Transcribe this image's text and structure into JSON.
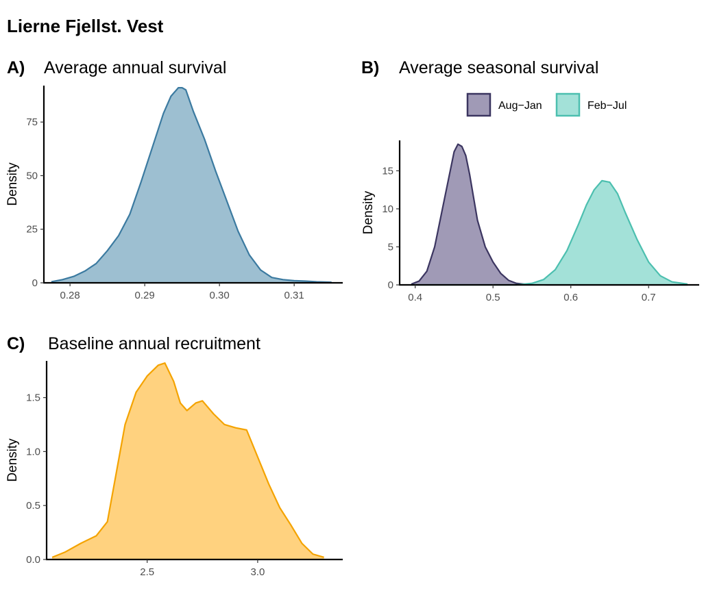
{
  "page_title": "Lierne Fjellst. Vest",
  "chart_data": [
    {
      "type": "area",
      "tag": "A)",
      "title": "Average annual survival",
      "xlabel": "",
      "ylabel": "Density",
      "xlim": [
        0.2765,
        0.3165
      ],
      "ylim": [
        0,
        92
      ],
      "x_ticks": [
        0.28,
        0.29,
        0.3,
        0.31
      ],
      "x_tick_labels": [
        "0.28",
        "0.29",
        "0.30",
        "0.31"
      ],
      "y_ticks": [
        0,
        25,
        50,
        75
      ],
      "y_tick_labels": [
        "0",
        "25",
        "50",
        "75"
      ],
      "grid": false,
      "series": [
        {
          "fill": "#9dbfd1",
          "stroke": "#3b7aa0",
          "x": [
            0.2775,
            0.279,
            0.2805,
            0.282,
            0.2835,
            0.285,
            0.2865,
            0.288,
            0.2895,
            0.291,
            0.2925,
            0.2935,
            0.2945,
            0.295,
            0.2955,
            0.2965,
            0.298,
            0.2995,
            0.301,
            0.3025,
            0.304,
            0.3055,
            0.307,
            0.3085,
            0.31,
            0.3115,
            0.313,
            0.315
          ],
          "y": [
            0.5,
            1.5,
            3,
            5.5,
            9,
            15,
            22,
            32,
            47,
            63,
            79,
            87,
            91,
            91,
            90,
            80,
            67,
            52,
            38,
            24,
            13,
            6,
            2.5,
            1.5,
            1,
            0.8,
            0.5,
            0.3
          ]
        }
      ]
    },
    {
      "type": "area",
      "tag": "B)",
      "title": "Average seasonal survival",
      "xlabel": "",
      "ylabel": "Density",
      "xlim": [
        0.38,
        0.765
      ],
      "ylim": [
        0,
        19
      ],
      "x_ticks": [
        0.4,
        0.5,
        0.6,
        0.7
      ],
      "x_tick_labels": [
        "0.4",
        "0.5",
        "0.6",
        "0.7"
      ],
      "y_ticks": [
        0,
        5,
        10,
        15
      ],
      "y_tick_labels": [
        "0",
        "5",
        "10",
        "15"
      ],
      "grid": false,
      "legend": "top",
      "series": [
        {
          "name": "Aug−Jan",
          "fill": "#a09ab6",
          "stroke": "#3b3560",
          "x": [
            0.395,
            0.405,
            0.415,
            0.425,
            0.435,
            0.445,
            0.45,
            0.455,
            0.46,
            0.465,
            0.47,
            0.475,
            0.48,
            0.49,
            0.5,
            0.51,
            0.52,
            0.53,
            0.545,
            0.57,
            0.75
          ],
          "y": [
            0.1,
            0.5,
            1.8,
            5,
            10,
            15,
            17.5,
            18.5,
            18.2,
            17,
            14.5,
            11.5,
            8.5,
            5,
            3,
            1.5,
            0.6,
            0.2,
            0.05,
            0,
            0
          ]
        },
        {
          "name": "Feb−Jul",
          "fill": "#a3e1d8",
          "stroke": "#4cbfaf",
          "x": [
            0.395,
            0.53,
            0.55,
            0.565,
            0.58,
            0.595,
            0.61,
            0.62,
            0.63,
            0.64,
            0.65,
            0.66,
            0.67,
            0.685,
            0.7,
            0.715,
            0.73,
            0.75
          ],
          "y": [
            0,
            0,
            0.2,
            0.7,
            2,
            4.5,
            8,
            10.5,
            12.5,
            13.7,
            13.5,
            12,
            9.5,
            6,
            3,
            1.2,
            0.4,
            0.1
          ]
        }
      ]
    },
    {
      "type": "area",
      "tag": "C)",
      "title": "Baseline annual recruitment",
      "xlabel": "",
      "ylabel": "Density",
      "xlim": [
        2.045,
        3.385
      ],
      "ylim": [
        0,
        1.84
      ],
      "x_ticks": [
        2.5,
        3.0
      ],
      "x_tick_labels": [
        "2.5",
        "3.0"
      ],
      "y_ticks": [
        0,
        0.5,
        1.0,
        1.5
      ],
      "y_tick_labels": [
        "0.0",
        "0.5",
        "1.0",
        "1.5"
      ],
      "grid": false,
      "series": [
        {
          "fill": "#ffd27f",
          "stroke": "#f4a300",
          "x": [
            2.07,
            2.13,
            2.2,
            2.27,
            2.32,
            2.36,
            2.4,
            2.45,
            2.5,
            2.55,
            2.58,
            2.62,
            2.65,
            2.68,
            2.72,
            2.75,
            2.8,
            2.85,
            2.9,
            2.95,
            3.0,
            3.05,
            3.1,
            3.15,
            3.2,
            3.25,
            3.3
          ],
          "y": [
            0.02,
            0.07,
            0.15,
            0.22,
            0.35,
            0.8,
            1.25,
            1.55,
            1.7,
            1.8,
            1.82,
            1.65,
            1.45,
            1.38,
            1.45,
            1.47,
            1.35,
            1.25,
            1.22,
            1.2,
            0.95,
            0.7,
            0.48,
            0.32,
            0.15,
            0.05,
            0.02
          ]
        }
      ]
    }
  ]
}
